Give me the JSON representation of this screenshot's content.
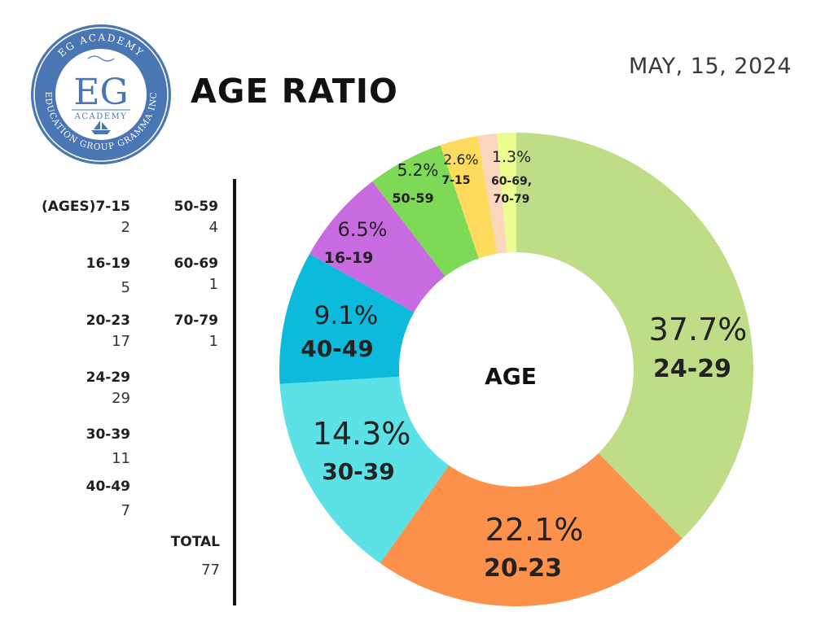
{
  "header": {
    "title": "AGE RATIO",
    "date": "MAY, 15, 2024"
  },
  "logo": {
    "ring_top_text": "EG ACADEMY",
    "ring_bottom_text": "EDUCATION GROUP GRAMMA INC",
    "monogram": "EG",
    "subtitle": "ACADEMY"
  },
  "table": {
    "column_1": [
      {
        "label": "(AGES)7-15",
        "value": "2"
      },
      {
        "label": "16-19",
        "value": "5"
      },
      {
        "label": "20-23",
        "value": "17"
      },
      {
        "label": "24-29",
        "value": "29"
      },
      {
        "label": "30-39",
        "value": "11"
      },
      {
        "label": "40-49",
        "value": "7"
      }
    ],
    "column_2": [
      {
        "label": "50-59",
        "value": "4"
      },
      {
        "label": "60-69",
        "value": "1"
      },
      {
        "label": "70-79",
        "value": "1"
      }
    ],
    "total_label": "TOTAL",
    "total_value": "77"
  },
  "colors": {
    "logo_blue": "#4a77b3"
  },
  "chart_data": {
    "type": "pie",
    "donut": true,
    "center_label": "AGE",
    "slices": [
      {
        "category": "24-29",
        "count": 29,
        "percent": 37.7,
        "color": "#bfdc86"
      },
      {
        "category": "20-23",
        "count": 17,
        "percent": 22.1,
        "color": "#fc914b"
      },
      {
        "category": "30-39",
        "count": 11,
        "percent": 14.3,
        "color": "#5ce1e6"
      },
      {
        "category": "40-49",
        "count": 7,
        "percent": 9.1,
        "color": "#0cbadc"
      },
      {
        "category": "16-19",
        "count": 5,
        "percent": 6.5,
        "color": "#c86be0"
      },
      {
        "category": "50-59",
        "count": 4,
        "percent": 5.2,
        "color": "#7ed957"
      },
      {
        "category": "7-15",
        "count": 2,
        "percent": 2.6,
        "color": "#fedb5c"
      },
      {
        "category": "60-69",
        "count": 1,
        "percent": 1.3,
        "color": "#fcd6bf"
      },
      {
        "category": "70-79",
        "count": 1,
        "percent": 1.3,
        "color": "#eafd8e"
      }
    ],
    "annotations": [
      {
        "percent_text": "37.7%",
        "label": "24-29"
      },
      {
        "percent_text": "22.1%",
        "label": "20-23"
      },
      {
        "percent_text": "14.3%",
        "label": "30-39"
      },
      {
        "percent_text": "9.1%",
        "label": "40-49"
      },
      {
        "percent_text": "6.5%",
        "label": "16-19"
      },
      {
        "percent_text": "5.2%",
        "label": "50-59"
      },
      {
        "percent_text": "2.6%",
        "label": "7-15"
      },
      {
        "percent_text": "1.3%",
        "label": "60-69,",
        "label2": "70-79"
      }
    ]
  }
}
